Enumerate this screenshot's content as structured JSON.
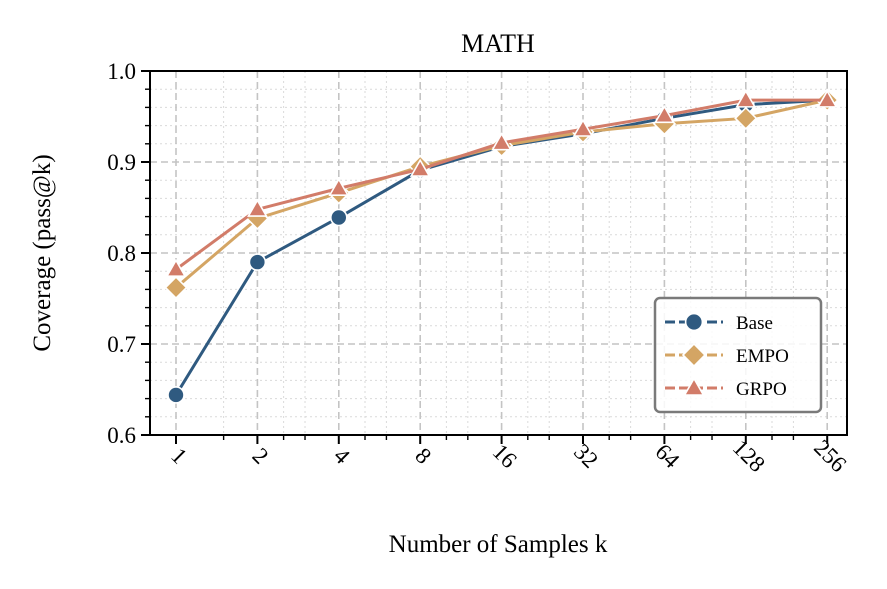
{
  "chart_data": {
    "type": "line",
    "title": "MATH",
    "xlabel": "Number of Samples k",
    "ylabel": "Coverage (pass@k)",
    "x": [
      "1",
      "2",
      "4",
      "8",
      "16",
      "32",
      "64",
      "128",
      "256"
    ],
    "x_scale": "log2",
    "ylim": [
      0.6,
      1.0
    ],
    "yticks": [
      "0.6",
      "0.7",
      "0.8",
      "0.9",
      "1.0"
    ],
    "grid": true,
    "legend_position": "lower-right",
    "series": [
      {
        "name": "Base",
        "marker": "circle",
        "color": "#2f5a80",
        "values": [
          0.644,
          0.79,
          0.839,
          0.891,
          0.917,
          0.931,
          0.948,
          0.963,
          0.968
        ]
      },
      {
        "name": "EMPO",
        "marker": "diamond",
        "color": "#d4a564",
        "values": [
          0.762,
          0.838,
          0.866,
          0.895,
          0.918,
          0.933,
          0.942,
          0.948,
          0.968
        ]
      },
      {
        "name": "GRPO",
        "marker": "triangle",
        "color": "#d27c69",
        "values": [
          0.782,
          0.848,
          0.871,
          0.892,
          0.921,
          0.936,
          0.951,
          0.968,
          0.968
        ]
      }
    ]
  }
}
